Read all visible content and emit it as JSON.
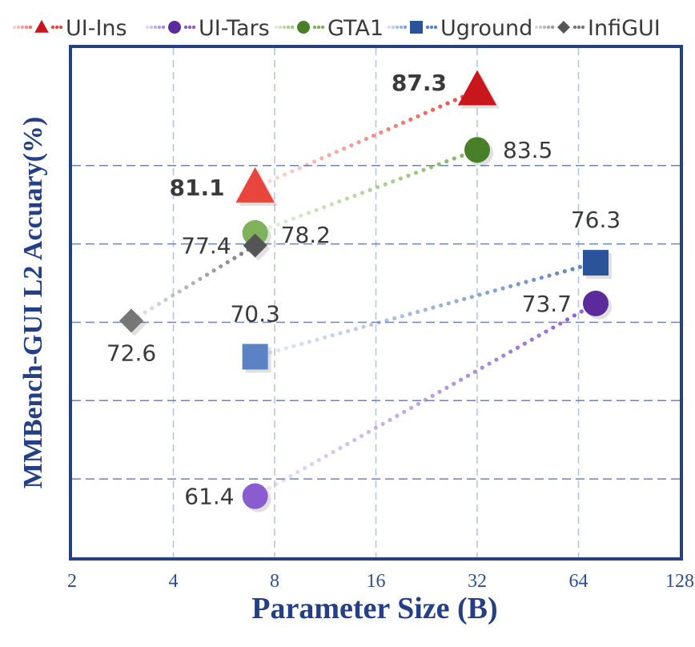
{
  "chart_data": {
    "type": "scatter",
    "title": "",
    "xlabel": "Parameter Size (B)",
    "ylabel": "MMBench-GUI L2 Accuary(%)",
    "x_scale": "log2",
    "xlim": [
      2,
      128
    ],
    "ylim": [
      57.5,
      90
    ],
    "x_ticks": [
      2,
      4,
      8,
      16,
      32,
      64,
      128
    ],
    "x_tick_labels": [
      "2",
      "4",
      "8",
      "16",
      "32",
      "64",
      "128"
    ],
    "y_gridlines": [
      62.5,
      67.5,
      72.5,
      77.5,
      82.5
    ],
    "grid": true,
    "legend_position": "top",
    "series": [
      {
        "name": "UI-Ins",
        "marker": "triangle",
        "color": "#c8161d",
        "line_color": "#e8453c",
        "points": [
          {
            "x": 7,
            "y": 81.1,
            "label": "81.1",
            "bold": true
          },
          {
            "x": 32,
            "y": 87.3,
            "label": "87.3",
            "bold": true
          }
        ]
      },
      {
        "name": "UI-Tars",
        "marker": "circle",
        "color": "#5b2a9c",
        "line_color": "#8a5cd0",
        "points": [
          {
            "x": 7,
            "y": 61.4,
            "label": "61.4"
          },
          {
            "x": 72,
            "y": 73.7,
            "label": "73.7"
          }
        ]
      },
      {
        "name": "GTA1",
        "marker": "circle",
        "color": "#4a7f2a",
        "line_color": "#7fb25a",
        "points": [
          {
            "x": 7,
            "y": 78.2,
            "label": "78.2"
          },
          {
            "x": 32,
            "y": 83.5,
            "label": "83.5"
          }
        ]
      },
      {
        "name": "Uground",
        "marker": "square",
        "color": "#2a539a",
        "line_color": "#5b82c4",
        "points": [
          {
            "x": 7,
            "y": 70.3,
            "label": "70.3"
          },
          {
            "x": 72,
            "y": 76.3,
            "label": "76.3"
          }
        ]
      },
      {
        "name": "InfiGUI",
        "marker": "diamond",
        "color": "#555555",
        "line_color": "#777777",
        "points": [
          {
            "x": 3,
            "y": 72.6,
            "label": "72.6"
          },
          {
            "x": 7,
            "y": 77.4,
            "label": "77.4"
          }
        ]
      }
    ]
  }
}
